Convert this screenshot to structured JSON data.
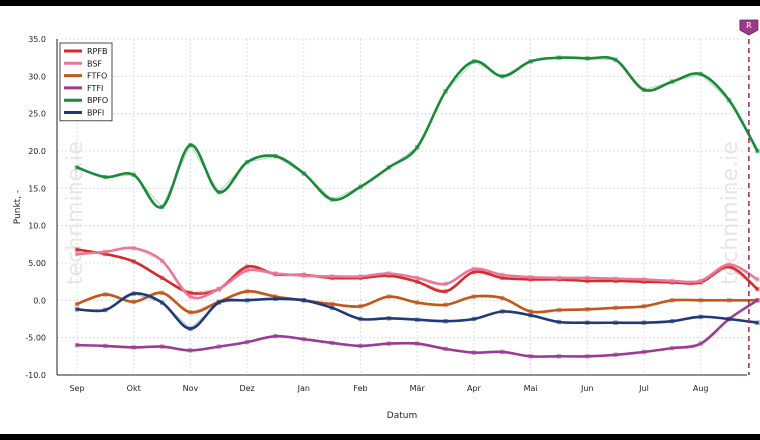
{
  "chart_data": {
    "type": "line",
    "xlabel": "Datum",
    "ylabel": "Punkt, -",
    "ylim": [
      -10,
      35
    ],
    "yticks": [
      "35.0",
      "30.0",
      "25.0",
      "20.0",
      "15.0",
      "10.0",
      "5.00",
      "0.0",
      "-5.00",
      "-10.0"
    ],
    "yticks_values": [
      35,
      30,
      25,
      20,
      15,
      10,
      5,
      0,
      -5,
      -10
    ],
    "months": [
      "Sep",
      "Okt",
      "Nov",
      "Dez",
      "Jan",
      "Feb",
      "Mär",
      "Apr",
      "Mai",
      "Jun",
      "Jul",
      "Aug"
    ],
    "grid": true,
    "legend_position": "top-left",
    "marker_label": "R",
    "marker_month": 11.85,
    "watermark": "technmine.ie",
    "series": [
      {
        "name": "RPFB",
        "color": "#d42b2b",
        "x": [
          0,
          0.5,
          1,
          1.5,
          2,
          2.5,
          3,
          3.5,
          4,
          4.5,
          5,
          5.5,
          6,
          6.5,
          7,
          7.5,
          8,
          8.5,
          9,
          9.5,
          10,
          10.5,
          11,
          11.5,
          12
        ],
        "y": [
          6.8,
          6.2,
          5.2,
          3.0,
          1.0,
          1.5,
          4.5,
          3.5,
          3.4,
          3.0,
          3.0,
          3.3,
          2.5,
          1.2,
          3.8,
          3.0,
          2.8,
          2.8,
          2.6,
          2.6,
          2.5,
          2.4,
          2.4,
          4.5,
          1.5
        ]
      },
      {
        "name": "BSF",
        "color": "#e8799a",
        "x": [
          0,
          0.5,
          1,
          1.5,
          2,
          2.5,
          3,
          3.5,
          4,
          4.5,
          5,
          5.5,
          6,
          6.5,
          7,
          7.5,
          8,
          8.5,
          9,
          9.5,
          10,
          10.5,
          11,
          11.5,
          12
        ],
        "y": [
          6.2,
          6.5,
          7.0,
          5.3,
          0.5,
          1.5,
          4.0,
          3.6,
          3.3,
          3.2,
          3.2,
          3.6,
          3.0,
          2.2,
          4.2,
          3.4,
          3.1,
          3.0,
          3.0,
          2.9,
          2.8,
          2.6,
          2.6,
          4.8,
          2.8
        ]
      },
      {
        "name": "FTFO",
        "color": "#c0571c",
        "x": [
          0,
          0.5,
          1,
          1.5,
          2,
          2.5,
          3,
          3.5,
          4,
          4.5,
          5,
          5.5,
          6,
          6.5,
          7,
          7.5,
          8,
          8.5,
          9,
          9.5,
          10,
          10.5,
          11,
          11.5,
          12
        ],
        "y": [
          -0.5,
          0.8,
          -0.2,
          1.0,
          -1.6,
          -0.2,
          1.2,
          0.5,
          0.0,
          -0.5,
          -0.8,
          0.5,
          -0.3,
          -0.6,
          0.5,
          0.3,
          -1.5,
          -1.3,
          -1.2,
          -1.0,
          -0.8,
          0.0,
          0.0,
          0.0,
          0.0
        ]
      },
      {
        "name": "FTFI",
        "color": "#9c3b94",
        "x": [
          0,
          0.5,
          1,
          1.5,
          2,
          2.5,
          3,
          3.5,
          4,
          4.5,
          5,
          5.5,
          6,
          6.5,
          7,
          7.5,
          8,
          8.5,
          9,
          9.5,
          10,
          10.5,
          11,
          11.5,
          12
        ],
        "y": [
          -6.0,
          -6.1,
          -6.3,
          -6.2,
          -6.7,
          -6.2,
          -5.6,
          -4.8,
          -5.2,
          -5.7,
          -6.1,
          -5.8,
          -5.8,
          -6.5,
          -7.0,
          -6.9,
          -7.5,
          -7.5,
          -7.5,
          -7.3,
          -6.9,
          -6.4,
          -5.8,
          -2.5,
          0.0
        ]
      },
      {
        "name": "BPFO",
        "color": "#1a8a3a",
        "x": [
          0,
          0.5,
          1,
          1.5,
          2,
          2.5,
          3,
          3.5,
          4,
          4.5,
          5,
          5.5,
          6,
          6.5,
          7,
          7.5,
          8,
          8.5,
          9,
          9.5,
          10,
          10.5,
          11,
          11.5,
          12
        ],
        "y": [
          17.8,
          16.5,
          16.8,
          12.5,
          20.8,
          14.5,
          18.5,
          19.3,
          17.0,
          13.5,
          15.2,
          17.8,
          20.5,
          28.0,
          32.0,
          30.0,
          32.0,
          32.5,
          32.4,
          32.2,
          28.2,
          29.3,
          30.3,
          26.8,
          20.0
        ]
      },
      {
        "name": "BPFI",
        "color": "#1f3a7a",
        "x": [
          0,
          0.5,
          1,
          1.5,
          2,
          2.5,
          3,
          3.5,
          4,
          4.5,
          5,
          5.5,
          6,
          6.5,
          7,
          7.5,
          8,
          8.5,
          9,
          9.5,
          10,
          10.5,
          11,
          11.5,
          12
        ],
        "y": [
          -1.2,
          -1.3,
          0.9,
          -0.3,
          -3.8,
          -0.3,
          0.0,
          0.2,
          0.0,
          -1.0,
          -2.5,
          -2.4,
          -2.6,
          -2.8,
          -2.5,
          -1.5,
          -2.0,
          -2.9,
          -3.0,
          -3.0,
          -3.0,
          -2.8,
          -2.2,
          -2.5,
          -3.0
        ]
      }
    ]
  }
}
